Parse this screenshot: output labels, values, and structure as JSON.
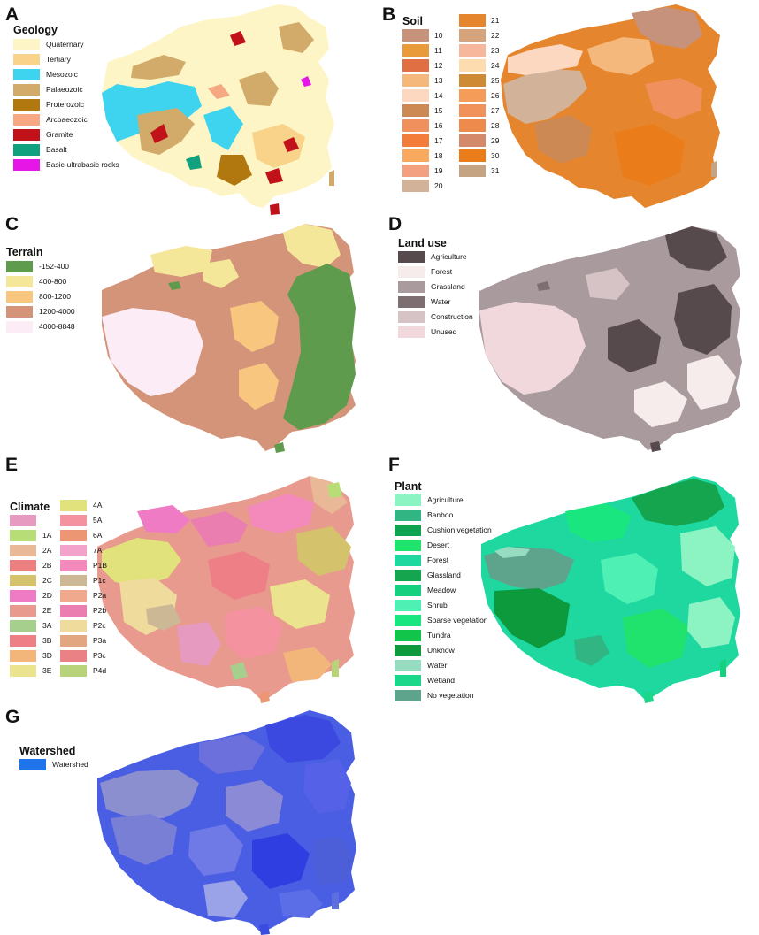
{
  "panels": {
    "A": {
      "letter": "A",
      "legend_title": "Geology",
      "items": [
        {
          "label": "Quaternary",
          "color": "#fdf5c5"
        },
        {
          "label": "Tertiary",
          "color": "#f9d38a"
        },
        {
          "label": "Mesozoic",
          "color": "#3ed4f0"
        },
        {
          "label": "Palaeozoic",
          "color": "#d2ab6a"
        },
        {
          "label": "Proterozoic",
          "color": "#b0780f"
        },
        {
          "label": "Arcbaeozoic",
          "color": "#f6a883"
        },
        {
          "label": "Gramite",
          "color": "#c1121a"
        },
        {
          "label": "Basalt",
          "color": "#12a17e"
        },
        {
          "label": "Basic-ultrabasic rocks",
          "color": "#e616e6"
        }
      ]
    },
    "B": {
      "letter": "B",
      "legend_title": "Soil",
      "col1": [
        {
          "label": "10",
          "color": "#c7927c"
        },
        {
          "label": "11",
          "color": "#e99a3b"
        },
        {
          "label": "12",
          "color": "#e07043"
        },
        {
          "label": "13",
          "color": "#f5b87c"
        },
        {
          "label": "14",
          "color": "#fcd8c0"
        },
        {
          "label": "15",
          "color": "#cc8954"
        },
        {
          "label": "16",
          "color": "#f0905c"
        },
        {
          "label": "17",
          "color": "#f37c3a"
        },
        {
          "label": "18",
          "color": "#f9a85e"
        },
        {
          "label": "19",
          "color": "#f2a080"
        },
        {
          "label": "20",
          "color": "#d2b39a"
        }
      ],
      "col2": [
        {
          "label": "21",
          "color": "#e5862f"
        },
        {
          "label": "22",
          "color": "#d6a47a"
        },
        {
          "label": "23",
          "color": "#f6b79c"
        },
        {
          "label": "24",
          "color": "#fddcb0"
        },
        {
          "label": "25",
          "color": "#cf8a36"
        },
        {
          "label": "26",
          "color": "#f59c58"
        },
        {
          "label": "27",
          "color": "#f1925a"
        },
        {
          "label": "28",
          "color": "#ee8a4b"
        },
        {
          "label": "29",
          "color": "#d48a6a"
        },
        {
          "label": "30",
          "color": "#ea7d1a"
        },
        {
          "label": "31",
          "color": "#c4a482"
        }
      ]
    },
    "C": {
      "letter": "C",
      "legend_title": "Terrain",
      "items": [
        {
          "label": "-152-400",
          "color": "#5e9b4c"
        },
        {
          "label": "400-800",
          "color": "#f5e79a"
        },
        {
          "label": "800-1200",
          "color": "#f8c67e"
        },
        {
          "label": "1200-4000",
          "color": "#d4947a"
        },
        {
          "label": "4000-8848",
          "color": "#fcecf6"
        }
      ]
    },
    "D": {
      "letter": "D",
      "legend_title": "Land use",
      "items": [
        {
          "label": "Agriculture",
          "color": "#574a4c"
        },
        {
          "label": "Forest",
          "color": "#f7ecec"
        },
        {
          "label": "Grassland",
          "color": "#a99a9d"
        },
        {
          "label": "Water",
          "color": "#7d6e71"
        },
        {
          "label": "Construction",
          "color": "#d5c3c6"
        },
        {
          "label": "Unused",
          "color": "#f0d8dc"
        }
      ]
    },
    "E": {
      "letter": "E",
      "legend_title": "Climate",
      "col1": [
        {
          "label": "",
          "color": "#e79abf"
        },
        {
          "label": "1A",
          "color": "#b6dd76"
        },
        {
          "label": "2A",
          "color": "#e8b897"
        },
        {
          "label": "2B",
          "color": "#ed7f80"
        },
        {
          "label": "2C",
          "color": "#d5c26c"
        },
        {
          "label": "2D",
          "color": "#ee7bc4"
        },
        {
          "label": "2E",
          "color": "#e89a8e"
        },
        {
          "label": "3A",
          "color": "#a6cf8e"
        },
        {
          "label": "3B",
          "color": "#ef7f86"
        },
        {
          "label": "3D",
          "color": "#f3b67a"
        },
        {
          "label": "3E",
          "color": "#ece38e"
        }
      ],
      "col2": [
        {
          "label": "4A",
          "color": "#e2e27c"
        },
        {
          "label": "5A",
          "color": "#f492a0"
        },
        {
          "label": "6A",
          "color": "#ec9673"
        },
        {
          "label": "7A",
          "color": "#f3a2cc"
        },
        {
          "label": "P1B",
          "color": "#f489bb"
        },
        {
          "label": "P1c",
          "color": "#cdb896"
        },
        {
          "label": "P2a",
          "color": "#f1a98d"
        },
        {
          "label": "P2b",
          "color": "#ea7eb0"
        },
        {
          "label": "P2c",
          "color": "#efdb9c"
        },
        {
          "label": "P3a",
          "color": "#e2a681"
        },
        {
          "label": "P3c",
          "color": "#ea8185"
        },
        {
          "label": "P4d",
          "color": "#b9d37a"
        }
      ]
    },
    "F": {
      "letter": "F",
      "legend_title": "Plant",
      "items": [
        {
          "label": "Agriculture",
          "color": "#8cf3c2"
        },
        {
          "label": "Banboo",
          "color": "#31b582"
        },
        {
          "label": "Cushion vegetation",
          "color": "#0fa251"
        },
        {
          "label": "Desert",
          "color": "#1fe36d"
        },
        {
          "label": "Forest",
          "color": "#1ed8a0"
        },
        {
          "label": "Glassland",
          "color": "#15a54f"
        },
        {
          "label": "Meadow",
          "color": "#15d07e"
        },
        {
          "label": "Shrub",
          "color": "#4ff0b4"
        },
        {
          "label": "Sparse vegetation",
          "color": "#19e67e"
        },
        {
          "label": "Tundra",
          "color": "#11c44a"
        },
        {
          "label": "Unknow",
          "color": "#0c9a3d"
        },
        {
          "label": "Water",
          "color": "#96dcc0"
        },
        {
          "label": "Wetland",
          "color": "#1bd78a"
        },
        {
          "label": "No vegetation",
          "color": "#5ea38c"
        }
      ]
    },
    "G": {
      "letter": "G",
      "legend_title": "Watershed",
      "items": [
        {
          "label": "Watershed",
          "color": "#1f74eb"
        }
      ]
    }
  }
}
